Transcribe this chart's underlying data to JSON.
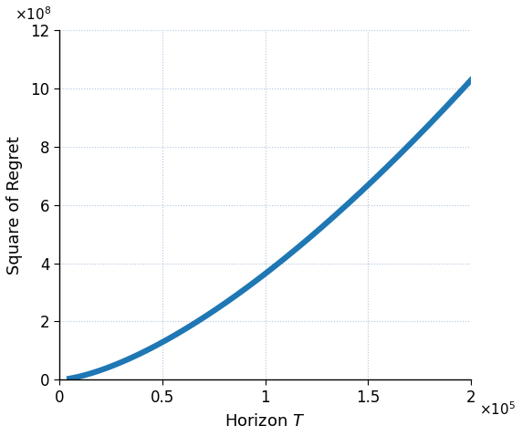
{
  "x_start": 5000,
  "x_end": 200000,
  "x_num_points": 1000,
  "power": 1.5,
  "scale_factor": 11.5,
  "xlim": [
    0,
    200000
  ],
  "ylim": [
    0,
    1200000000.0
  ],
  "xticks": [
    0,
    50000,
    100000,
    150000,
    200000
  ],
  "xtick_labels": [
    "0",
    "0.5",
    "1",
    "1.5",
    "2"
  ],
  "yticks": [
    0,
    200000000,
    400000000,
    600000000,
    800000000,
    1000000000,
    1200000000
  ],
  "ytick_labels": [
    "0",
    "2",
    "4",
    "6",
    "8",
    "10",
    "12"
  ],
  "xlabel": "Horizon $T$",
  "ylabel": "Square of Regret",
  "line_color": "#1f77b4",
  "line_width": 4.5,
  "grid_color": "#b0c4de",
  "grid_linestyle": ":",
  "grid_linewidth": 0.8,
  "background_color": "#ffffff",
  "figsize": [
    5.72,
    4.78
  ],
  "dpi": 100
}
